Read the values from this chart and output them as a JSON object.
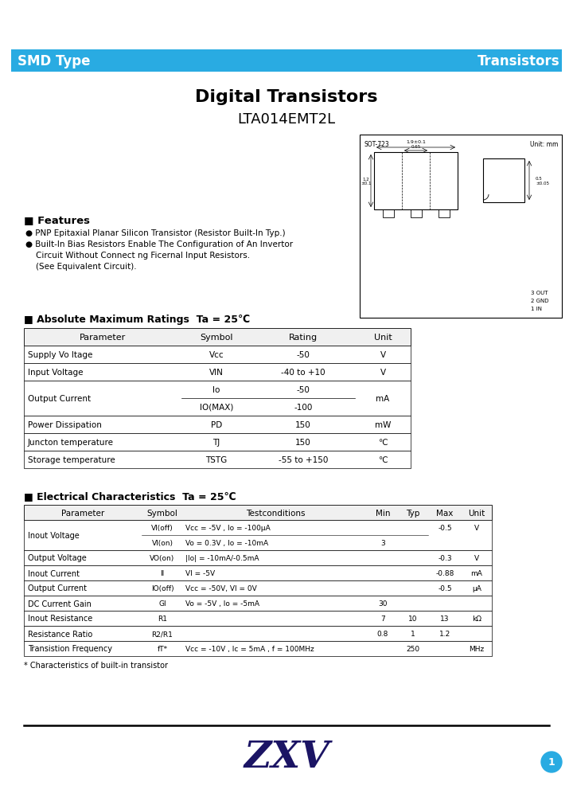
{
  "header_bg_color": "#29ABE2",
  "header_text_color": "#FFFFFF",
  "header_left": "SMD Type",
  "header_right": "Transistors",
  "title1": "Digital Transistors",
  "title2": "LTA014EMT2L",
  "features_header": "■ Features",
  "features": [
    "● PNP Epitaxial Planar Silicon Transistor (Resistor Built-In Typ.)",
    "● Built-In Bias Resistors Enable The Configuration of An Invertor",
    "    Circuit Without Connect ng Ficernal Input Resistors.",
    "    (See Equivalent Circuit)."
  ],
  "abs_max_title": "■ Absolute Maximum Ratings  Ta = 25℃",
  "abs_max_headers": [
    "Parameter",
    "Symbol",
    "Rating",
    "Unit"
  ],
  "abs_max_rows": [
    [
      "Supply Vo ltage",
      "Vcc",
      "-50",
      "V"
    ],
    [
      "Input Voltage",
      "VIN",
      "-40 to +10",
      "V"
    ],
    [
      "Output Current",
      "Io",
      "-50",
      "mA"
    ],
    [
      "",
      "IO(MAX)",
      "-100",
      ""
    ],
    [
      "Power Dissipation",
      "PD",
      "150",
      "mW"
    ],
    [
      "Juncton temperature",
      "TJ",
      "150",
      "℃"
    ],
    [
      "Storage temperature",
      "TSTG",
      "-55 to +150",
      "℃"
    ]
  ],
  "elec_char_title": "■ Electrical Characteristics  Ta = 25℃",
  "elec_char_headers": [
    "Parameter",
    "Symbol",
    "Testconditions",
    "Min",
    "Typ",
    "Max",
    "Unit"
  ],
  "elec_char_rows": [
    [
      "Inout Voltage",
      "VI(off)",
      "Vcc = -5V , Io = -100μA",
      "",
      "",
      "-0.5",
      "V"
    ],
    [
      "",
      "VI(on)",
      "Vo = 0.3V , Io = -10mA",
      "3",
      "",
      "",
      ""
    ],
    [
      "Output Voltage",
      "VO(on)",
      "|Io| = -10mA/-0.5mA",
      "",
      "",
      "-0.3",
      "V"
    ],
    [
      "Inout Current",
      "II",
      "VI = -5V",
      "",
      "",
      "-0.88",
      "mA"
    ],
    [
      "Output Current",
      "IO(off)",
      "Vcc = -50V, VI = 0V",
      "",
      "",
      "-0.5",
      "μA"
    ],
    [
      "DC Current Gain",
      "GI",
      "Vo = -5V , Io = -5mA",
      "30",
      "",
      "",
      ""
    ],
    [
      "Inout Resistance",
      "R1",
      "",
      "7",
      "10",
      "13",
      "kΩ"
    ],
    [
      "Resistance Ratio",
      "R2/R1",
      "",
      "0.8",
      "1",
      "1.2",
      ""
    ],
    [
      "Transistion Frequency",
      "fT*",
      "Vcc = -10V , Ic = 5mA , f = 100MHz",
      "",
      "250",
      "",
      "MHz"
    ]
  ],
  "footnote": "* Characteristics of built-in transistor",
  "footer_text": "ZXV",
  "page_num": "1",
  "bg_color": "#FFFFFF",
  "text_color": "#000000",
  "footer_logo_color": "#1B1464",
  "page_circle_color": "#29ABE2"
}
